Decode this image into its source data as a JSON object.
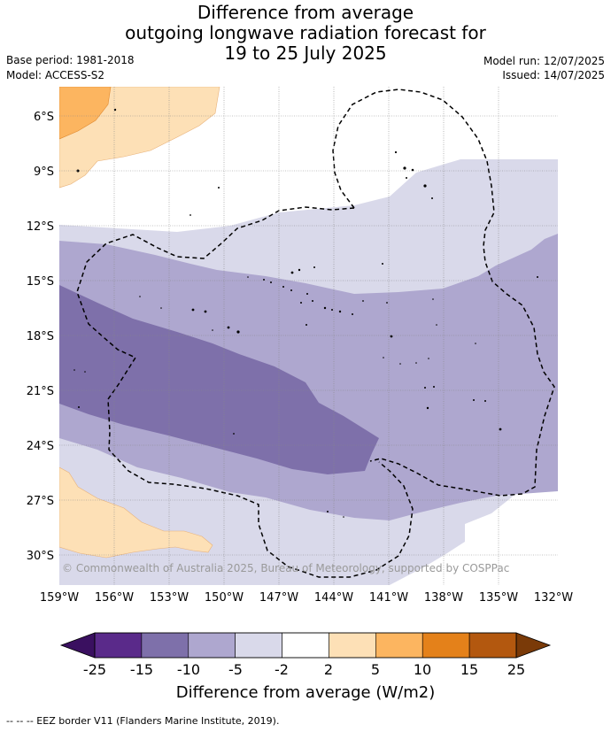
{
  "header": {
    "title_lines": [
      "Difference from average",
      "outgoing longwave radiation forecast for",
      "19 to 25 July 2025"
    ],
    "base_period": "Base period: 1981-2018",
    "model": "Model: ACCESS-S2",
    "model_run": "Model run: 12/07/2025",
    "issued": "Issued: 14/07/2025"
  },
  "map": {
    "lat_labels": [
      "6°S",
      "9°S",
      "12°S",
      "15°S",
      "18°S",
      "21°S",
      "24°S",
      "27°S",
      "30°S"
    ],
    "lon_labels": [
      "159°W",
      "156°W",
      "153°W",
      "150°W",
      "147°W",
      "144°W",
      "141°W",
      "138°W",
      "135°W",
      "132°W"
    ],
    "copyright": "© Commonwealth of Australia 2025, Bureau of Meteorology, supported by COSPPac"
  },
  "colorbar": {
    "ticks": [
      "-25",
      "-15",
      "-10",
      "-5",
      "-2",
      "2",
      "5",
      "10",
      "15",
      "25"
    ],
    "colors": [
      "#5a2a8a",
      "#7e70aa",
      "#aea7cf",
      "#d9d9ea",
      "#ffffff",
      "#fde0b6",
      "#fcb560",
      "#e4811a",
      "#b3580f"
    ],
    "under_color": "#3a1060",
    "over_color": "#7a3a08",
    "label": "Difference from average (W/m2)"
  },
  "footer": {
    "legend": "--  --  -- EEZ border V11 (Flanders Marine Institute, 2019)."
  }
}
